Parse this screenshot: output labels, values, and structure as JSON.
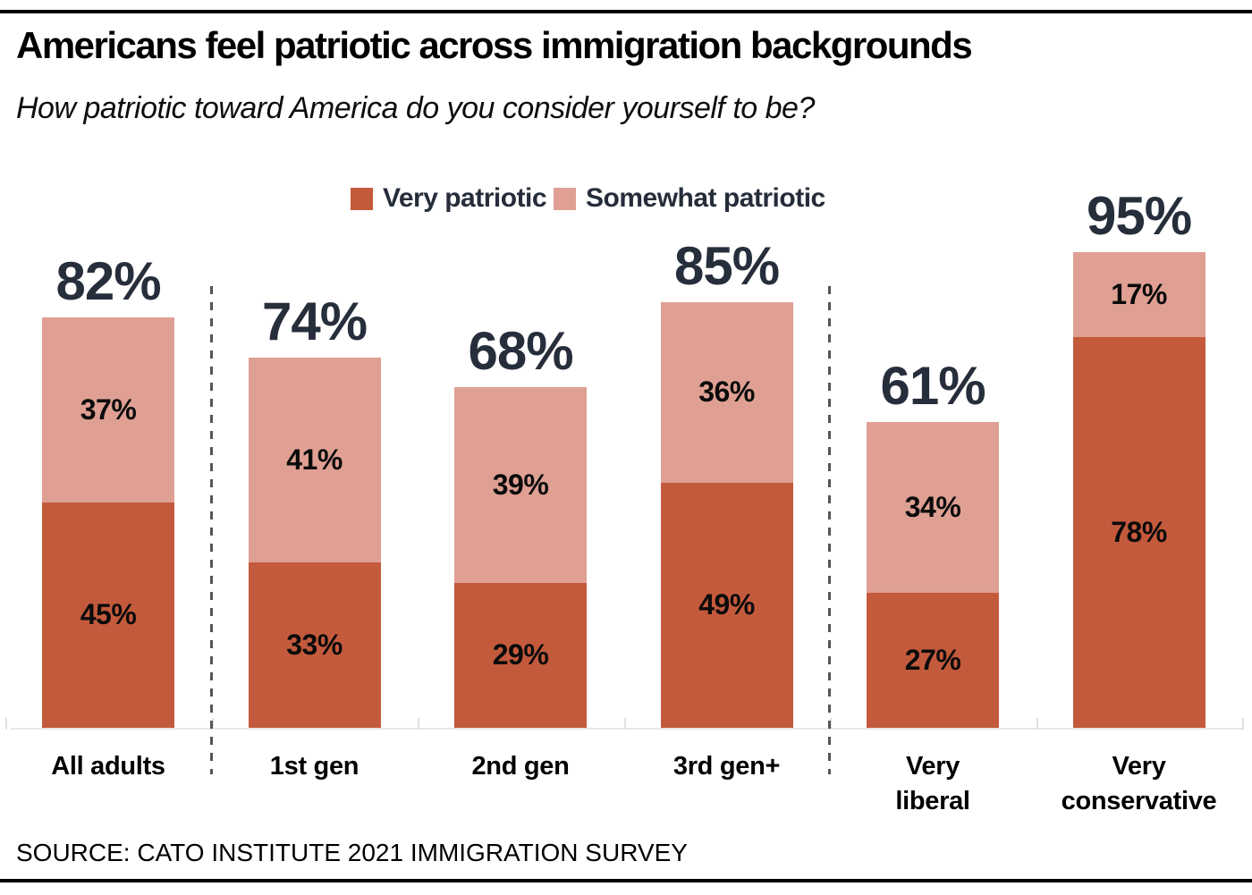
{
  "header": {
    "title": "Americans feel patriotic across immigration backgrounds",
    "subtitle": "How patriotic toward America do you consider yourself to be?"
  },
  "legend": {
    "items": [
      {
        "label": "Very patriotic",
        "color": "#c45a3c"
      },
      {
        "label": "Somewhat patriotic",
        "color": "#dfa093"
      }
    ]
  },
  "source": {
    "text": "SOURCE: CATO INSTITUTE 2021 IMMIGRATION SURVEY"
  },
  "chart_data": {
    "type": "bar",
    "stacked": true,
    "title": "Americans feel patriotic across immigration backgrounds",
    "subtitle": "How patriotic toward America do you consider yourself to be?",
    "categories": [
      "All adults",
      "1st gen",
      "2nd gen",
      "3rd gen+",
      "Very liberal",
      "Very conservative"
    ],
    "category_lines": [
      [
        "All adults"
      ],
      [
        "1st gen"
      ],
      [
        "2nd gen"
      ],
      [
        "3rd gen+"
      ],
      [
        "Very",
        "liberal"
      ],
      [
        "Very",
        "conservative"
      ]
    ],
    "series": [
      {
        "name": "Very patriotic",
        "color": "#c45a3c",
        "values": [
          45,
          33,
          29,
          49,
          27,
          78
        ]
      },
      {
        "name": "Somewhat patriotic",
        "color": "#dfa093",
        "values": [
          37,
          41,
          39,
          36,
          34,
          17
        ]
      }
    ],
    "totals": [
      82,
      74,
      68,
      85,
      61,
      95
    ],
    "value_suffix": "%",
    "xlabel": "",
    "ylabel": "",
    "ylim": [
      0,
      100
    ],
    "grid": false,
    "legend_position": "top",
    "divider_after_indices": [
      0,
      3
    ],
    "colors": {
      "total_label": "#272e3b",
      "segment_label": "#0b0b0b",
      "divider": "#555555",
      "baseline": "#e7e7e7"
    }
  }
}
